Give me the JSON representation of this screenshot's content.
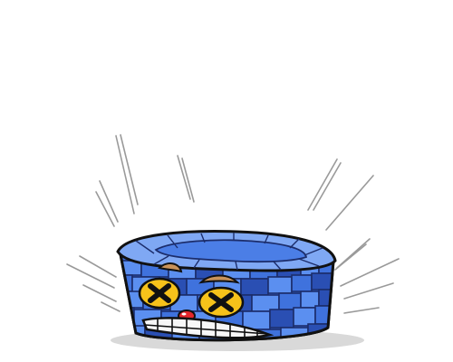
{
  "scene": {
    "subject": "knocked-out-brick-tower-character",
    "colors": {
      "background": "#ffffff",
      "outline": "#111111",
      "brick_light": "#5b8ff0",
      "brick_mid": "#3f72dd",
      "brick_dark": "#2a4fb3",
      "brick_top": "#7fa8f4",
      "mortar": "#1c2d6b",
      "eye_yellow": "#f6c21a",
      "brow_tan": "#c9935a",
      "nose_red": "#e3262b",
      "teeth": "#f7f7f7",
      "shadow": "#d9d9d9",
      "impact_lines": "#9a9a9a"
    }
  }
}
